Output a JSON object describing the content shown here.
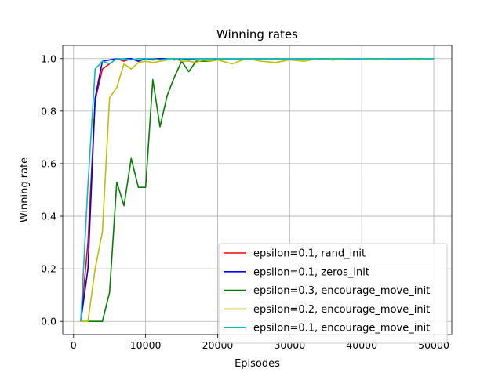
{
  "chart_data": {
    "type": "line",
    "title": "Winning rates",
    "xlabel": "Episodes",
    "ylabel": "Winning rate",
    "xlim": [
      -1500,
      52500
    ],
    "ylim": [
      -0.05,
      1.05
    ],
    "x_ticks": [
      0,
      10000,
      20000,
      30000,
      40000,
      50000
    ],
    "x_tick_labels": [
      "0",
      "10000",
      "20000",
      "30000",
      "40000",
      "50000"
    ],
    "y_ticks": [
      0.0,
      0.2,
      0.4,
      0.6,
      0.8,
      1.0
    ],
    "y_tick_labels": [
      "0.0",
      "0.2",
      "0.4",
      "0.6",
      "0.8",
      "1.0"
    ],
    "grid": true,
    "legend_position": "lower-right",
    "x": [
      1000,
      2000,
      3000,
      4000,
      5000,
      6000,
      7000,
      8000,
      9000,
      10000,
      11000,
      12000,
      13000,
      14000,
      15000,
      16000,
      17000,
      18000,
      19000,
      20000,
      22000,
      24000,
      26000,
      28000,
      30000,
      32000,
      34000,
      36000,
      38000,
      40000,
      42000,
      44000,
      46000,
      48000,
      50000
    ],
    "series": [
      {
        "name": "epsilon=0.1, rand_init",
        "color": "#ff0000",
        "values": [
          0.0,
          0.3,
          0.84,
          0.96,
          0.98,
          1.0,
          0.99,
          1.0,
          0.99,
          1.0,
          1.0,
          1.0,
          1.0,
          1.0,
          1.0,
          1.0,
          1.0,
          1.0,
          1.0,
          1.0,
          1.0,
          1.0,
          1.0,
          1.0,
          1.0,
          1.0,
          1.0,
          1.0,
          1.0,
          1.0,
          1.0,
          1.0,
          1.0,
          1.0,
          1.0
        ]
      },
      {
        "name": "epsilon=0.1, zeros_init",
        "color": "#0000ff",
        "values": [
          0.0,
          0.2,
          0.85,
          0.99,
          0.995,
          1.0,
          1.0,
          1.0,
          0.99,
          1.0,
          0.995,
          1.0,
          1.0,
          0.995,
          1.0,
          0.995,
          1.0,
          1.0,
          1.0,
          1.0,
          1.0,
          1.0,
          1.0,
          1.0,
          1.0,
          1.0,
          1.0,
          1.0,
          1.0,
          1.0,
          1.0,
          1.0,
          1.0,
          1.0,
          1.0
        ]
      },
      {
        "name": "epsilon=0.3, encourage_move_init",
        "color": "#008000",
        "values": [
          0.0,
          0.0,
          0.0,
          0.0,
          0.11,
          0.53,
          0.44,
          0.62,
          0.51,
          0.51,
          0.92,
          0.74,
          0.86,
          0.93,
          0.99,
          0.95,
          0.99,
          0.99,
          0.99,
          1.0,
          1.0,
          1.0,
          1.0,
          1.0,
          1.0,
          1.0,
          1.0,
          0.995,
          1.0,
          1.0,
          1.0,
          1.0,
          1.0,
          1.0,
          1.0
        ]
      },
      {
        "name": "epsilon=0.2, encourage_move_init",
        "color": "#bfbf00",
        "values": [
          0.0,
          0.0,
          0.2,
          0.34,
          0.85,
          0.89,
          0.98,
          0.96,
          0.985,
          0.99,
          0.985,
          0.99,
          0.995,
          1.0,
          0.99,
          0.99,
          0.985,
          0.995,
          0.99,
          0.995,
          0.98,
          1.0,
          0.99,
          0.985,
          0.995,
          0.99,
          1.0,
          0.995,
          1.0,
          1.0,
          0.995,
          1.0,
          1.0,
          0.995,
          1.0
        ]
      },
      {
        "name": "epsilon=0.1, encourage_move_init",
        "color": "#00bfbf",
        "values": [
          0.0,
          0.52,
          0.96,
          0.99,
          0.98,
          1.0,
          1.0,
          0.995,
          1.0,
          1.0,
          1.0,
          0.995,
          1.0,
          1.0,
          1.0,
          1.0,
          1.0,
          1.0,
          1.0,
          1.0,
          1.0,
          1.0,
          1.0,
          1.0,
          1.0,
          1.0,
          1.0,
          1.0,
          1.0,
          1.0,
          1.0,
          1.0,
          1.0,
          1.0,
          1.0
        ]
      }
    ]
  }
}
